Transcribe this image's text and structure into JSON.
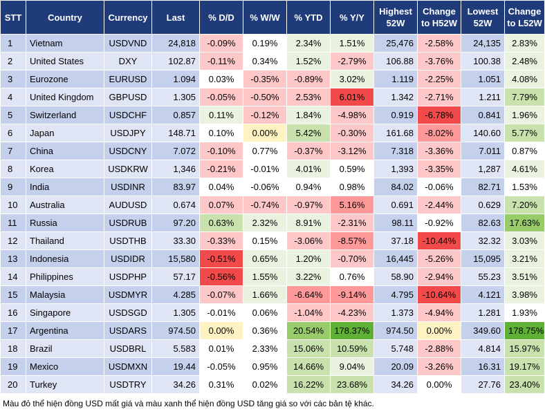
{
  "headers": [
    "STT",
    "Country",
    "Currency",
    "Last",
    "% D/D",
    "% W/W",
    "% YTD",
    "% Y/Y",
    "Highest 52W",
    "Change to H52W",
    "Lowest 52W",
    "Change to L52W"
  ],
  "rows": [
    {
      "stt": "1",
      "country": "Vietnam",
      "currency": "USDVND",
      "last": "24,818",
      "dd": "-0.09%",
      "ww": "0.19%",
      "ytd": "2.34%",
      "yy": "1.51%",
      "high": "25,476",
      "chh": "-2.58%",
      "low": "24,135",
      "chl": "2.83%"
    },
    {
      "stt": "2",
      "country": "United States",
      "currency": "DXY",
      "last": "102.87",
      "dd": "-0.11%",
      "ww": "0.34%",
      "ytd": "1.52%",
      "yy": "-2.79%",
      "high": "106.88",
      "chh": "-3.76%",
      "low": "100.38",
      "chl": "2.48%"
    },
    {
      "stt": "3",
      "country": "Eurozone",
      "currency": "EURUSD",
      "last": "1.094",
      "dd": "0.03%",
      "ww": "-0.35%",
      "ytd": "-0.89%",
      "yy": "3.02%",
      "high": "1.119",
      "chh": "-2.25%",
      "low": "1.051",
      "chl": "4.08%"
    },
    {
      "stt": "4",
      "country": "United Kingdom",
      "currency": "GBPUSD",
      "last": "1.305",
      "dd": "-0.05%",
      "ww": "-0.50%",
      "ytd": "2.53%",
      "yy": "6.01%",
      "high": "1.342",
      "chh": "-2.71%",
      "low": "1.211",
      "chl": "7.79%"
    },
    {
      "stt": "5",
      "country": "Switzerland",
      "currency": "USDCHF",
      "last": "0.857",
      "dd": "0.11%",
      "ww": "-0.12%",
      "ytd": "1.84%",
      "yy": "-4.98%",
      "high": "0.919",
      "chh": "-6.78%",
      "low": "0.841",
      "chl": "1.96%"
    },
    {
      "stt": "6",
      "country": "Japan",
      "currency": "USDJPY",
      "last": "148.71",
      "dd": "0.10%",
      "ww": "0.00%",
      "ytd": "5.42%",
      "yy": "-0.30%",
      "high": "161.68",
      "chh": "-8.02%",
      "low": "140.60",
      "chl": "5.77%"
    },
    {
      "stt": "7",
      "country": "China",
      "currency": "USDCNY",
      "last": "7.072",
      "dd": "-0.10%",
      "ww": "0.77%",
      "ytd": "-0.37%",
      "yy": "-3.12%",
      "high": "7.318",
      "chh": "-3.36%",
      "low": "7.011",
      "chl": "0.87%"
    },
    {
      "stt": "8",
      "country": "Korea",
      "currency": "USDKRW",
      "last": "1,346",
      "dd": "-0.21%",
      "ww": "-0.01%",
      "ytd": "4.01%",
      "yy": "0.59%",
      "high": "1,393",
      "chh": "-3.35%",
      "low": "1,287",
      "chl": "4.61%"
    },
    {
      "stt": "9",
      "country": "India",
      "currency": "USDINR",
      "last": "83.97",
      "dd": "0.04%",
      "ww": "-0.06%",
      "ytd": "0.94%",
      "yy": "0.98%",
      "high": "84.02",
      "chh": "-0.06%",
      "low": "82.71",
      "chl": "1.53%"
    },
    {
      "stt": "10",
      "country": "Australia",
      "currency": "AUDUSD",
      "last": "0.674",
      "dd": "0.07%",
      "ww": "-0.74%",
      "ytd": "-0.97%",
      "yy": "5.16%",
      "high": "0.691",
      "chh": "-2.44%",
      "low": "0.629",
      "chl": "7.20%"
    },
    {
      "stt": "11",
      "country": "Russia",
      "currency": "USDRUB",
      "last": "97.20",
      "dd": "0.63%",
      "ww": "2.32%",
      "ytd": "8.91%",
      "yy": "-2.31%",
      "high": "98.11",
      "chh": "-0.92%",
      "low": "82.63",
      "chl": "17.63%"
    },
    {
      "stt": "12",
      "country": "Thailand",
      "currency": "USDTHB",
      "last": "33.30",
      "dd": "-0.33%",
      "ww": "0.15%",
      "ytd": "-3.06%",
      "yy": "-8.57%",
      "high": "37.18",
      "chh": "-10.44%",
      "low": "32.32",
      "chl": "3.03%"
    },
    {
      "stt": "13",
      "country": "Indonesia",
      "currency": "USDIDR",
      "last": "15,580",
      "dd": "-0.51%",
      "ww": "0.65%",
      "ytd": "1.20%",
      "yy": "-0.70%",
      "high": "16,445",
      "chh": "-5.26%",
      "low": "15,095",
      "chl": "3.21%"
    },
    {
      "stt": "14",
      "country": "Philippines",
      "currency": "USDPHP",
      "last": "57.17",
      "dd": "-0.56%",
      "ww": "1.55%",
      "ytd": "3.22%",
      "yy": "0.76%",
      "high": "58.90",
      "chh": "-2.94%",
      "low": "55.23",
      "chl": "3.51%"
    },
    {
      "stt": "15",
      "country": "Malaysia",
      "currency": "USDMYR",
      "last": "4.285",
      "dd": "-0.07%",
      "ww": "1.66%",
      "ytd": "-6.64%",
      "yy": "-9.14%",
      "high": "4.795",
      "chh": "-10.64%",
      "low": "4.121",
      "chl": "3.98%"
    },
    {
      "stt": "16",
      "country": "Singapore",
      "currency": "USDSGD",
      "last": "1.305",
      "dd": "-0.01%",
      "ww": "0.06%",
      "ytd": "-1.04%",
      "yy": "-4.23%",
      "high": "1.373",
      "chh": "-4.94%",
      "low": "1.281",
      "chl": "1.93%"
    },
    {
      "stt": "17",
      "country": "Argentina",
      "currency": "USDARS",
      "last": "974.50",
      "dd": "0.00%",
      "ww": "0.36%",
      "ytd": "20.54%",
      "yy": "178.37%",
      "high": "974.50",
      "chh": "0.00%",
      "low": "349.60",
      "chl": "178.75%"
    },
    {
      "stt": "18",
      "country": "Brazil",
      "currency": "USDBRL",
      "last": "5.583",
      "dd": "0.01%",
      "ww": "2.33%",
      "ytd": "15.06%",
      "yy": "10.59%",
      "high": "5.748",
      "chh": "-2.88%",
      "low": "4.814",
      "chl": "15.97%"
    },
    {
      "stt": "19",
      "country": "Mexico",
      "currency": "USDMXN",
      "last": "19.44",
      "dd": "-0.05%",
      "ww": "0.95%",
      "ytd": "14.66%",
      "yy": "9.04%",
      "high": "20.09",
      "chh": "-3.26%",
      "low": "16.31",
      "chl": "19.17%"
    },
    {
      "stt": "20",
      "country": "Turkey",
      "currency": "USDTRY",
      "last": "34.26",
      "dd": "0.31%",
      "ww": "0.02%",
      "ytd": "16.22%",
      "yy": "23.68%",
      "high": "34.26",
      "chh": "0.00%",
      "low": "27.76",
      "chl": "23.40%"
    }
  ],
  "footnote": "Màu đỏ thể hiện đồng USD mất giá và màu xanh thể hiện đồng USD tăng giá so với các bản tệ khác.",
  "colors": {
    "header_bg": "#1f3b7a",
    "row_odd": "#c5d0ec",
    "row_even": "#dfe5f5",
    "red_strong": "#f24a4a",
    "green_strong": "#5fb136"
  }
}
